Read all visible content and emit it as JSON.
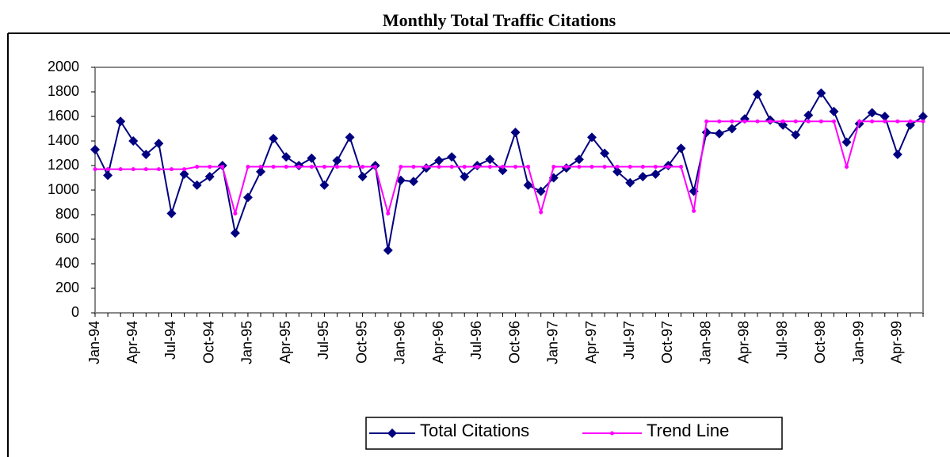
{
  "chart_data": {
    "type": "line",
    "title": "Monthly Total Traffic Citations",
    "categories": [
      "Jan-94",
      null,
      null,
      "Apr-94",
      null,
      null,
      "Jul-94",
      null,
      null,
      "Oct-94",
      null,
      null,
      "Jan-95",
      null,
      null,
      "Apr-95",
      null,
      null,
      "Jul-95",
      null,
      null,
      "Oct-95",
      null,
      null,
      "Jan-96",
      null,
      null,
      "Apr-96",
      null,
      null,
      "Jul-96",
      null,
      null,
      "Oct-96",
      null,
      null,
      "Jan-97",
      null,
      null,
      "Apr-97",
      null,
      null,
      "Jul-97",
      null,
      null,
      "Oct-97",
      null,
      null,
      "Jan-98",
      null,
      null,
      "Apr-98",
      null,
      null,
      "Jul-98",
      null,
      null,
      "Oct-98",
      null,
      null,
      "Jan-99",
      null,
      null,
      "Apr-99",
      null,
      null
    ],
    "series": [
      {
        "name": "Total Citations",
        "color": "#000080",
        "marker": "diamond",
        "values": [
          1330,
          1120,
          1560,
          1400,
          1290,
          1380,
          810,
          1130,
          1040,
          1110,
          1200,
          650,
          940,
          1150,
          1420,
          1270,
          1200,
          1260,
          1040,
          1240,
          1430,
          1110,
          1200,
          510,
          1080,
          1070,
          1180,
          1240,
          1270,
          1110,
          1200,
          1250,
          1160,
          1470,
          1040,
          990,
          1100,
          1180,
          1250,
          1430,
          1300,
          1150,
          1060,
          1110,
          1130,
          1200,
          1340,
          990,
          1470,
          1460,
          1500,
          1580,
          1780,
          1570,
          1530,
          1450,
          1610,
          1790,
          1640,
          1390,
          1540,
          1630,
          1600,
          1290,
          1530,
          1600
        ]
      },
      {
        "name": "Trend Line",
        "color": "#ff00ff",
        "marker": "dot",
        "values": [
          1170,
          1170,
          1170,
          1170,
          1170,
          1170,
          1170,
          1170,
          1190,
          1190,
          1190,
          810,
          1190,
          1190,
          1190,
          1190,
          1190,
          1190,
          1190,
          1190,
          1190,
          1190,
          1190,
          810,
          1190,
          1190,
          1190,
          1190,
          1190,
          1190,
          1190,
          1190,
          1190,
          1190,
          1190,
          820,
          1190,
          1190,
          1190,
          1190,
          1190,
          1190,
          1190,
          1190,
          1190,
          1190,
          1190,
          830,
          1560,
          1560,
          1560,
          1560,
          1560,
          1560,
          1560,
          1560,
          1560,
          1560,
          1560,
          1190,
          1560,
          1560,
          1560,
          1560,
          1560,
          1560
        ]
      }
    ],
    "ylim": [
      0,
      2000
    ],
    "yticks": [
      0,
      200,
      400,
      600,
      800,
      1000,
      1200,
      1400,
      1600,
      1800,
      2000
    ],
    "grid": false,
    "legend": "bottom"
  }
}
